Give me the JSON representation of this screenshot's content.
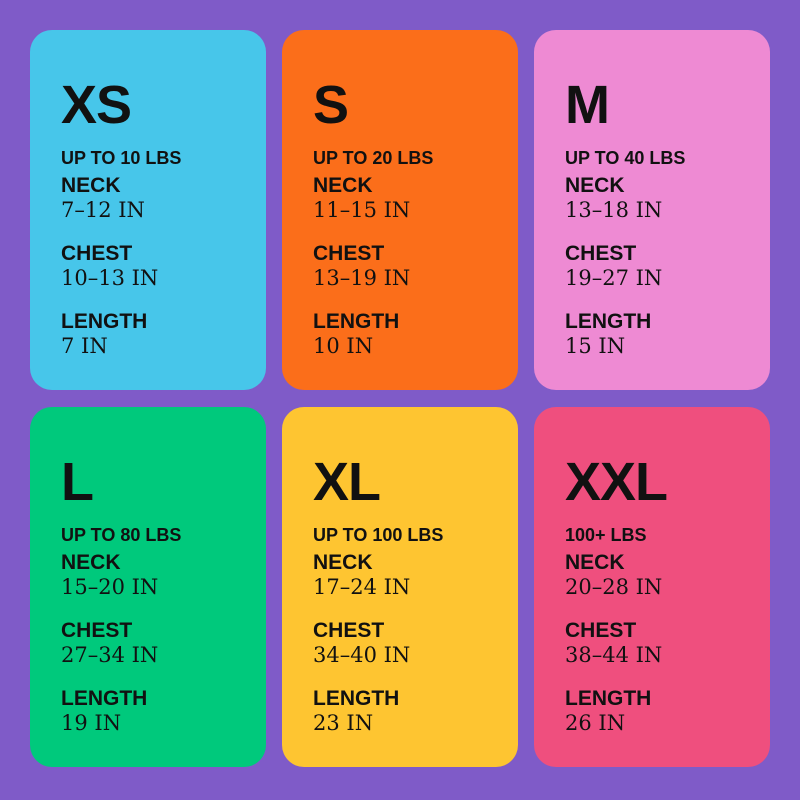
{
  "colors": {
    "background": "#7f5bc8"
  },
  "cards": [
    {
      "size": "XS",
      "weight": "UP TO 10 LBS",
      "color": "#47c6ea",
      "neck_label": "NECK",
      "neck": "7–12 IN",
      "chest_label": "CHEST",
      "chest": "10–13 IN",
      "length_label": "LENGTH",
      "length": "7 IN"
    },
    {
      "size": "S",
      "weight": "UP TO 20 LBS",
      "color": "#fb6e1a",
      "neck_label": "NECK",
      "neck": "11–15 IN",
      "chest_label": "CHEST",
      "chest": "13–19 IN",
      "length_label": "LENGTH",
      "length": "10 IN"
    },
    {
      "size": "M",
      "weight": "UP TO 40 LBS",
      "color": "#ee8ad3",
      "neck_label": "NECK",
      "neck": "13–18 IN",
      "chest_label": "CHEST",
      "chest": "19–27 IN",
      "length_label": "LENGTH",
      "length": "15 IN"
    },
    {
      "size": "L",
      "weight": "UP TO 80 LBS",
      "color": "#00c97c",
      "neck_label": "NECK",
      "neck": "15–20 IN",
      "chest_label": "CHEST",
      "chest": "27–34 IN",
      "length_label": "LENGTH",
      "length": "19 IN"
    },
    {
      "size": "XL",
      "weight": "UP TO 100 LBS",
      "color": "#fec531",
      "neck_label": "NECK",
      "neck": "17–24 IN",
      "chest_label": "CHEST",
      "chest": "34–40 IN",
      "length_label": "LENGTH",
      "length": "23 IN"
    },
    {
      "size": "XXL",
      "weight": "100+ LBS",
      "color": "#ef4f7e",
      "neck_label": "NECK",
      "neck": "20–28 IN",
      "chest_label": "CHEST",
      "chest": "38–44 IN",
      "length_label": "LENGTH",
      "length": "26 IN"
    }
  ]
}
